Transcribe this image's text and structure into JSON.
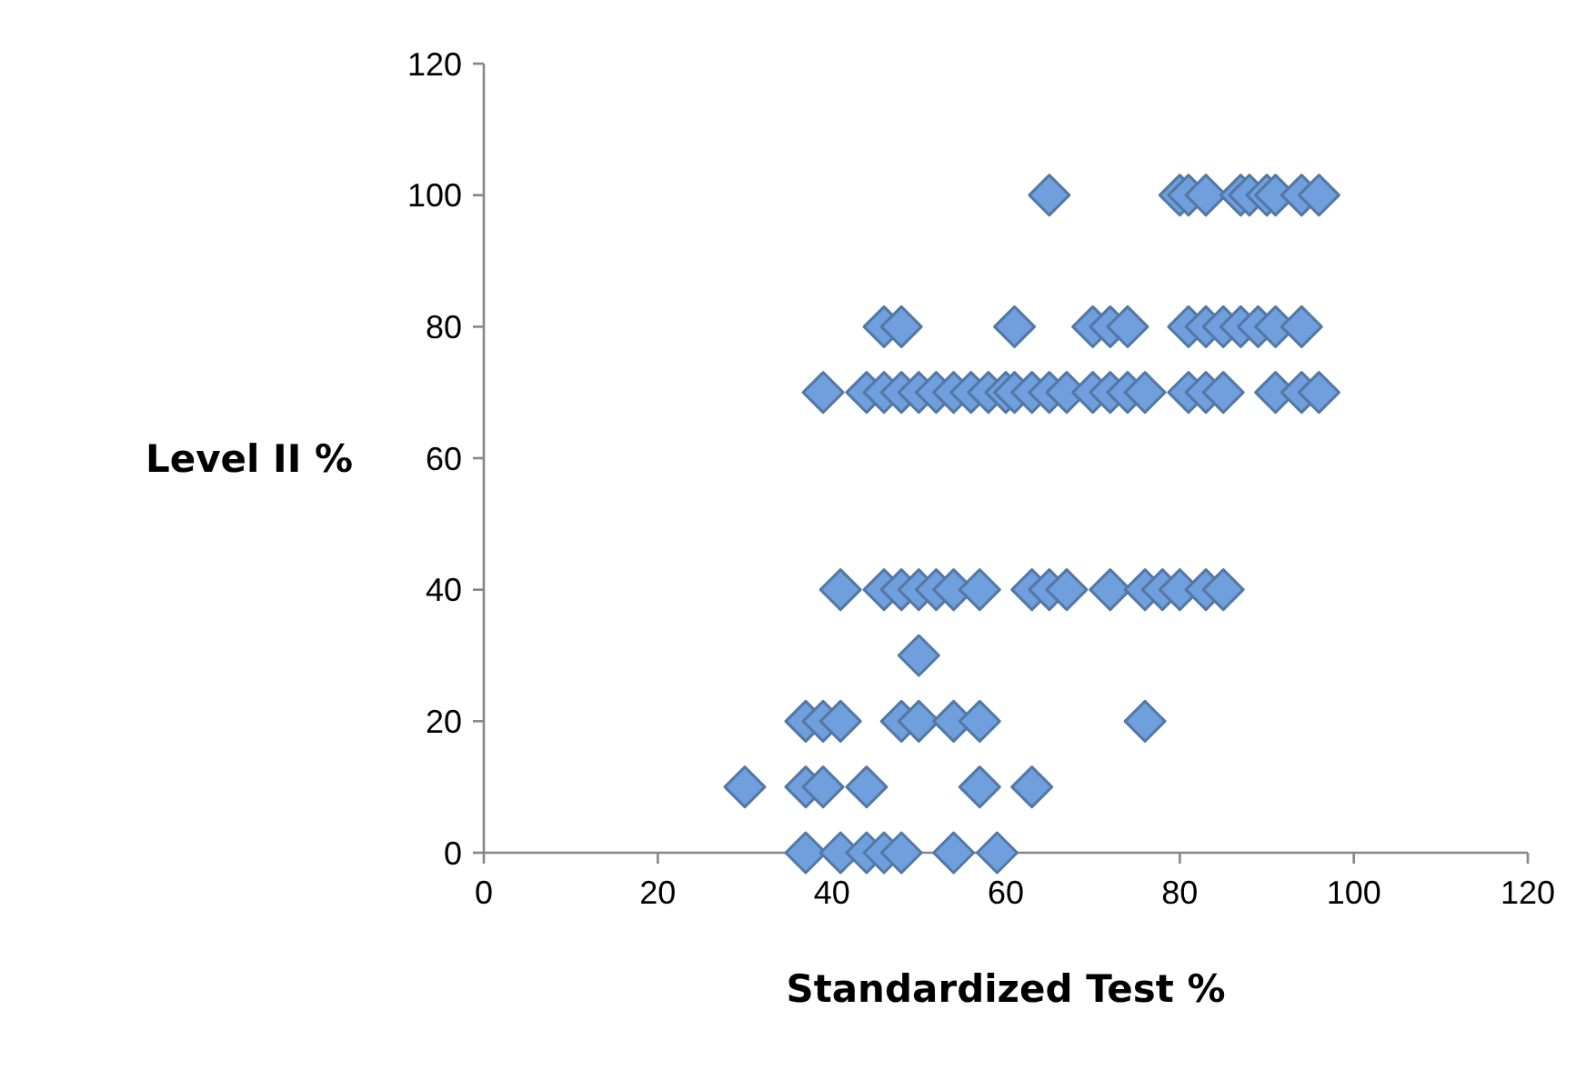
{
  "chart_data": {
    "type": "scatter",
    "xlabel": "Standardized Test %",
    "ylabel": "Level II %",
    "xlim": [
      0,
      120
    ],
    "xticks": [
      0,
      20,
      40,
      60,
      80,
      100,
      120
    ],
    "ylim": [
      0,
      120
    ],
    "yticks": [
      0,
      20,
      40,
      60,
      80,
      100,
      120
    ],
    "marker": "diamond",
    "grid": false,
    "series": [
      {
        "color": "#6f9fdc",
        "x": [
          37,
          41,
          44,
          46,
          48,
          54,
          59,
          30,
          37,
          39,
          44,
          57,
          63,
          37,
          39,
          41,
          48,
          50,
          54,
          57,
          76,
          50,
          41,
          46,
          48,
          50,
          52,
          54,
          57,
          63,
          65,
          67,
          72,
          76,
          78,
          80,
          83,
          85,
          39,
          44,
          46,
          48,
          50,
          52,
          54,
          56,
          58,
          60,
          61,
          63,
          65,
          67,
          70,
          72,
          74,
          76,
          81,
          83,
          85,
          91,
          94,
          96,
          46,
          48,
          61,
          70,
          72,
          74,
          81,
          83,
          85,
          87,
          89,
          91,
          94,
          65,
          80,
          81,
          83,
          87,
          88,
          90,
          91,
          94,
          96
        ],
        "values": [
          0,
          0,
          0,
          0,
          0,
          0,
          0,
          10,
          10,
          10,
          10,
          10,
          10,
          20,
          20,
          20,
          20,
          20,
          20,
          20,
          20,
          30,
          40,
          40,
          40,
          40,
          40,
          40,
          40,
          40,
          40,
          40,
          40,
          40,
          40,
          40,
          40,
          40,
          70,
          70,
          70,
          70,
          70,
          70,
          70,
          70,
          70,
          70,
          70,
          70,
          70,
          70,
          70,
          70,
          70,
          70,
          70,
          70,
          70,
          70,
          70,
          70,
          80,
          80,
          80,
          80,
          80,
          80,
          80,
          80,
          80,
          80,
          80,
          80,
          80,
          100,
          100,
          100,
          100,
          100,
          100,
          100,
          100,
          100,
          100
        ]
      }
    ]
  }
}
